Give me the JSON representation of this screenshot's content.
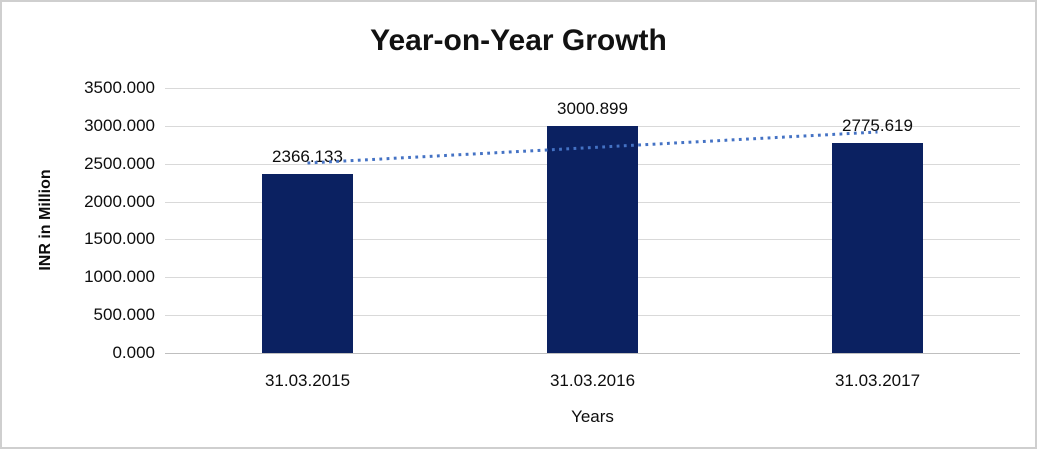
{
  "chart_data": {
    "type": "bar",
    "title": "Year-on-Year Growth",
    "categories": [
      "31.03.2015",
      "31.03.2016",
      "31.03.2017"
    ],
    "values": [
      2366.133,
      3000.899,
      2775.619
    ],
    "data_labels": [
      "2366.133",
      "3000.899",
      "2775.619"
    ],
    "xlabel": "Years",
    "ylabel": "INR in Million",
    "ylim": [
      0,
      3500
    ],
    "ytick_step": 500,
    "ytick_labels": [
      "0.000",
      "500.000",
      "1000.000",
      "1500.000",
      "2000.000",
      "2500.000",
      "3000.000",
      "3500.000"
    ],
    "grid": true,
    "legend": false,
    "trendline": {
      "fit": "linear",
      "style": "dotted",
      "color": "#4472c4"
    },
    "colors": {
      "bar": "#0b2161",
      "gridline": "#d9d9d9",
      "axis_line": "#bfbfbf",
      "text": "#0d0d0d",
      "frame_border": "#cfcfcf",
      "background": "#ffffff"
    }
  }
}
